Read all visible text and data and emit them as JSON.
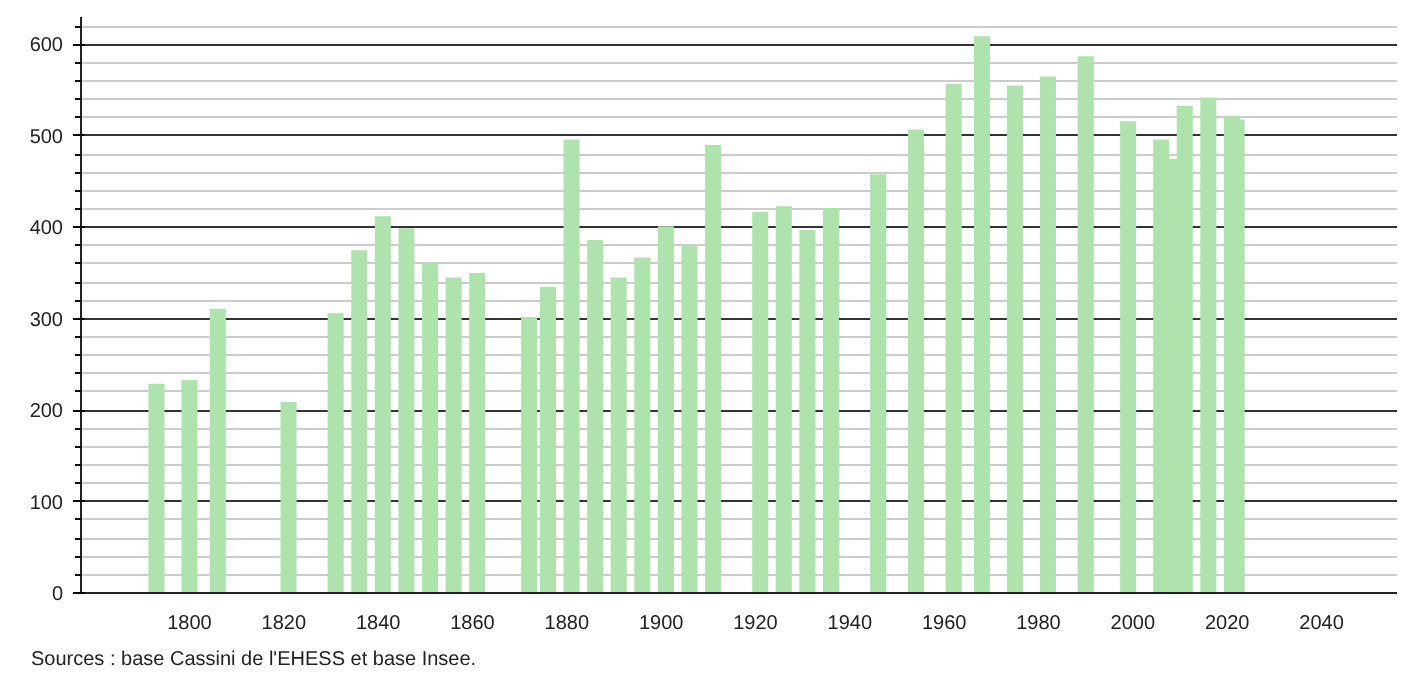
{
  "chart_data": {
    "type": "bar",
    "x": [
      1793,
      1800,
      1806,
      1821,
      1831,
      1836,
      1841,
      1846,
      1851,
      1856,
      1861,
      1872,
      1876,
      1881,
      1886,
      1891,
      1896,
      1901,
      1906,
      1911,
      1921,
      1926,
      1931,
      1936,
      1946,
      1954,
      1962,
      1968,
      1975,
      1982,
      1990,
      1999,
      2006,
      2008,
      2011,
      2016,
      2021,
      2022
    ],
    "values": [
      229,
      233,
      311,
      209,
      306,
      375,
      412,
      399,
      360,
      345,
      350,
      302,
      335,
      496,
      386,
      345,
      367,
      401,
      380,
      490,
      417,
      423,
      397,
      421,
      458,
      507,
      557,
      609,
      555,
      565,
      587,
      516,
      496,
      475,
      533,
      542,
      522,
      518
    ],
    "color": "#aee3ae",
    "xlim": [
      1777,
      2056
    ],
    "ylim": [
      0,
      630
    ],
    "xticks": [
      1800,
      1820,
      1840,
      1860,
      1880,
      1900,
      1920,
      1940,
      1960,
      1980,
      2000,
      2020,
      2040
    ],
    "yticks": [
      0,
      100,
      200,
      300,
      400,
      500,
      600
    ],
    "grid": "y",
    "annotations": [
      "Sources : base Cassini de l'EHESS et base Insee."
    ]
  }
}
